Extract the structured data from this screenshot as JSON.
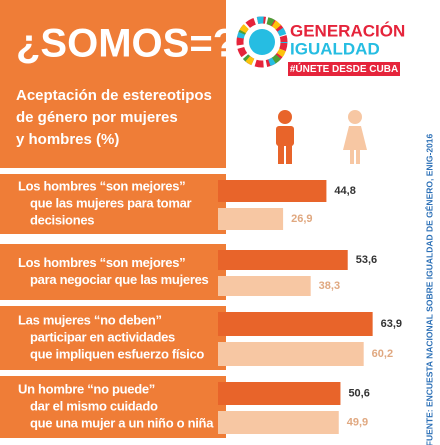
{
  "chart_data": {
    "type": "bar",
    "orientation": "horizontal",
    "title": "¿SOMOS=?",
    "subtitle": [
      "Aceptación de estereotipos",
      "de género por mujeres",
      "y hombres (%)"
    ],
    "categories": [
      [
        "Los hombres “son mejores”",
        "que las mujeres para tomar",
        "decisiones"
      ],
      [
        "Los hombres “son mejores”",
        "para negociar que las mujeres"
      ],
      [
        "Las mujeres “no deben”",
        "participar en actividades",
        "que impliquen esfuerzo físico"
      ],
      [
        "Un hombre “no puede”",
        "dar el mismo cuidado",
        "que una mujer a un niño o niña"
      ]
    ],
    "series": [
      {
        "color": "#e8642a",
        "values": [
          44.8,
          53.6,
          63.9,
          50.6
        ],
        "value_labels": [
          "44,8",
          "53,6",
          "63,9",
          "50,6"
        ]
      },
      {
        "color": "#f7c7a3",
        "values": [
          26.9,
          38.3,
          60.2,
          49.9
        ],
        "value_labels": [
          "26,9",
          "38,3",
          "60,2",
          "49,9"
        ]
      }
    ]
  },
  "logo": {
    "line1": "GENERACIÓN",
    "line2": "IGUALDAD",
    "hashtag": "#ÚNETE DESDE CUBA"
  },
  "source": "FUENTE: ENCUESTA NACIONAL SOBRE IGUALDAD DE GÉNERO, ENIG-2016"
}
